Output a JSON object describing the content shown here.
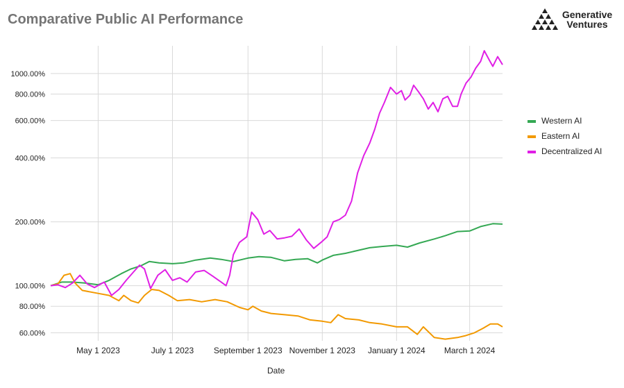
{
  "chart_data": {
    "type": "line",
    "title": "Comparative Public AI Performance",
    "xlabel": "Date",
    "ylabel": "",
    "y_scale": "log",
    "ylim": [
      55,
      1350
    ],
    "xlim": [
      "2023-03-23",
      "2024-03-28"
    ],
    "y_ticks": [
      60,
      80,
      100,
      200,
      400,
      600,
      800,
      1000
    ],
    "y_tick_labels": [
      "60.00%",
      "80.00%",
      "100.00%",
      "200.00%",
      "400.00%",
      "600.00%",
      "800.00%",
      "1000.00%"
    ],
    "x_ticks": [
      "2023-05-01",
      "2023-07-01",
      "2023-09-01",
      "2023-11-01",
      "2024-01-01",
      "2024-03-01"
    ],
    "x_tick_labels": [
      "May 1 2023",
      "July 1 2023",
      "September 1 2023",
      "November 1 2023",
      "January 1 2024",
      "March 1 2024"
    ],
    "grid": true,
    "legend_position": "right",
    "series": [
      {
        "name": "Western AI",
        "color": "#34a853",
        "points": [
          [
            "2023-03-23",
            100
          ],
          [
            "2023-04-01",
            104
          ],
          [
            "2023-04-10",
            104
          ],
          [
            "2023-04-20",
            103
          ],
          [
            "2023-05-01",
            101
          ],
          [
            "2023-05-10",
            106
          ],
          [
            "2023-05-20",
            114
          ],
          [
            "2023-05-28",
            120
          ],
          [
            "2023-06-05",
            124
          ],
          [
            "2023-06-12",
            130
          ],
          [
            "2023-06-20",
            128
          ],
          [
            "2023-07-01",
            127
          ],
          [
            "2023-07-10",
            128
          ],
          [
            "2023-07-20",
            132
          ],
          [
            "2023-08-01",
            135
          ],
          [
            "2023-08-10",
            133
          ],
          [
            "2023-08-20",
            130
          ],
          [
            "2023-09-01",
            135
          ],
          [
            "2023-09-10",
            137
          ],
          [
            "2023-09-20",
            136
          ],
          [
            "2023-10-01",
            131
          ],
          [
            "2023-10-10",
            133
          ],
          [
            "2023-10-20",
            134
          ],
          [
            "2023-10-28",
            128
          ],
          [
            "2023-11-01",
            132
          ],
          [
            "2023-11-10",
            139
          ],
          [
            "2023-11-20",
            142
          ],
          [
            "2023-12-01",
            147
          ],
          [
            "2023-12-10",
            151
          ],
          [
            "2023-12-20",
            153
          ],
          [
            "2024-01-01",
            155
          ],
          [
            "2024-01-10",
            152
          ],
          [
            "2024-01-20",
            159
          ],
          [
            "2024-02-01",
            166
          ],
          [
            "2024-02-10",
            172
          ],
          [
            "2024-02-20",
            180
          ],
          [
            "2024-03-01",
            181
          ],
          [
            "2024-03-10",
            190
          ],
          [
            "2024-03-20",
            196
          ],
          [
            "2024-03-28",
            195
          ]
        ]
      },
      {
        "name": "Eastern AI",
        "color": "#f29900",
        "points": [
          [
            "2023-03-23",
            100
          ],
          [
            "2023-03-29",
            102
          ],
          [
            "2023-04-03",
            112
          ],
          [
            "2023-04-08",
            114
          ],
          [
            "2023-04-12",
            103
          ],
          [
            "2023-04-18",
            95
          ],
          [
            "2023-05-01",
            92
          ],
          [
            "2023-05-10",
            90
          ],
          [
            "2023-05-18",
            85
          ],
          [
            "2023-05-22",
            90
          ],
          [
            "2023-05-28",
            85
          ],
          [
            "2023-06-03",
            83
          ],
          [
            "2023-06-08",
            90
          ],
          [
            "2023-06-14",
            96
          ],
          [
            "2023-06-20",
            95
          ],
          [
            "2023-06-28",
            90
          ],
          [
            "2023-07-05",
            85
          ],
          [
            "2023-07-15",
            86
          ],
          [
            "2023-07-25",
            84
          ],
          [
            "2023-08-05",
            86
          ],
          [
            "2023-08-15",
            84
          ],
          [
            "2023-08-25",
            79
          ],
          [
            "2023-09-01",
            77
          ],
          [
            "2023-09-05",
            80
          ],
          [
            "2023-09-12",
            76
          ],
          [
            "2023-09-20",
            74
          ],
          [
            "2023-10-01",
            73
          ],
          [
            "2023-10-12",
            72
          ],
          [
            "2023-10-22",
            69
          ],
          [
            "2023-11-01",
            68
          ],
          [
            "2023-11-08",
            67
          ],
          [
            "2023-11-14",
            73
          ],
          [
            "2023-11-20",
            70
          ],
          [
            "2023-12-01",
            69
          ],
          [
            "2023-12-10",
            67
          ],
          [
            "2023-12-20",
            66
          ],
          [
            "2024-01-01",
            64
          ],
          [
            "2024-01-10",
            64
          ],
          [
            "2024-01-18",
            59
          ],
          [
            "2024-01-23",
            64
          ],
          [
            "2024-02-01",
            57
          ],
          [
            "2024-02-10",
            56
          ],
          [
            "2024-02-20",
            57
          ],
          [
            "2024-02-26",
            58
          ],
          [
            "2024-03-05",
            60
          ],
          [
            "2024-03-12",
            63
          ],
          [
            "2024-03-18",
            66
          ],
          [
            "2024-03-24",
            66
          ],
          [
            "2024-03-28",
            64
          ]
        ]
      },
      {
        "name": "Decentralized AI",
        "color": "#e01fe5",
        "points": [
          [
            "2023-03-23",
            100
          ],
          [
            "2023-03-29",
            101
          ],
          [
            "2023-04-04",
            98
          ],
          [
            "2023-04-10",
            103
          ],
          [
            "2023-04-16",
            112
          ],
          [
            "2023-04-22",
            102
          ],
          [
            "2023-04-28",
            98
          ],
          [
            "2023-05-06",
            104
          ],
          [
            "2023-05-12",
            90
          ],
          [
            "2023-05-18",
            96
          ],
          [
            "2023-05-24",
            106
          ],
          [
            "2023-05-30",
            116
          ],
          [
            "2023-06-04",
            125
          ],
          [
            "2023-06-08",
            120
          ],
          [
            "2023-06-13",
            97
          ],
          [
            "2023-06-19",
            112
          ],
          [
            "2023-06-25",
            119
          ],
          [
            "2023-07-01",
            106
          ],
          [
            "2023-07-07",
            109
          ],
          [
            "2023-07-13",
            104
          ],
          [
            "2023-07-20",
            116
          ],
          [
            "2023-07-27",
            118
          ],
          [
            "2023-08-03",
            111
          ],
          [
            "2023-08-10",
            104
          ],
          [
            "2023-08-14",
            100
          ],
          [
            "2023-08-17",
            112
          ],
          [
            "2023-08-20",
            140
          ],
          [
            "2023-08-25",
            160
          ],
          [
            "2023-08-31",
            170
          ],
          [
            "2023-09-04",
            222
          ],
          [
            "2023-09-09",
            205
          ],
          [
            "2023-09-14",
            175
          ],
          [
            "2023-09-19",
            182
          ],
          [
            "2023-09-25",
            166
          ],
          [
            "2023-10-01",
            168
          ],
          [
            "2023-10-07",
            171
          ],
          [
            "2023-10-13",
            185
          ],
          [
            "2023-10-19",
            164
          ],
          [
            "2023-10-25",
            150
          ],
          [
            "2023-10-31",
            160
          ],
          [
            "2023-11-05",
            170
          ],
          [
            "2023-11-10",
            200
          ],
          [
            "2023-11-15",
            205
          ],
          [
            "2023-11-20",
            215
          ],
          [
            "2023-11-25",
            250
          ],
          [
            "2023-11-30",
            340
          ],
          [
            "2023-12-05",
            410
          ],
          [
            "2023-12-10",
            470
          ],
          [
            "2023-12-14",
            545
          ],
          [
            "2023-12-18",
            650
          ],
          [
            "2023-12-22",
            730
          ],
          [
            "2023-12-27",
            860
          ],
          [
            "2024-01-01",
            800
          ],
          [
            "2024-01-05",
            830
          ],
          [
            "2024-01-08",
            750
          ],
          [
            "2024-01-12",
            790
          ],
          [
            "2024-01-15",
            880
          ],
          [
            "2024-01-19",
            820
          ],
          [
            "2024-01-23",
            760
          ],
          [
            "2024-01-27",
            680
          ],
          [
            "2024-01-31",
            730
          ],
          [
            "2024-02-04",
            660
          ],
          [
            "2024-02-08",
            760
          ],
          [
            "2024-02-12",
            780
          ],
          [
            "2024-02-16",
            700
          ],
          [
            "2024-02-20",
            700
          ],
          [
            "2024-02-23",
            800
          ],
          [
            "2024-02-27",
            900
          ],
          [
            "2024-03-02",
            960
          ],
          [
            "2024-03-06",
            1060
          ],
          [
            "2024-03-10",
            1140
          ],
          [
            "2024-03-13",
            1280
          ],
          [
            "2024-03-17",
            1160
          ],
          [
            "2024-03-20",
            1080
          ],
          [
            "2024-03-24",
            1200
          ],
          [
            "2024-03-28",
            1100
          ]
        ]
      }
    ]
  },
  "branding": {
    "logo_text": "Generative Ventures"
  }
}
